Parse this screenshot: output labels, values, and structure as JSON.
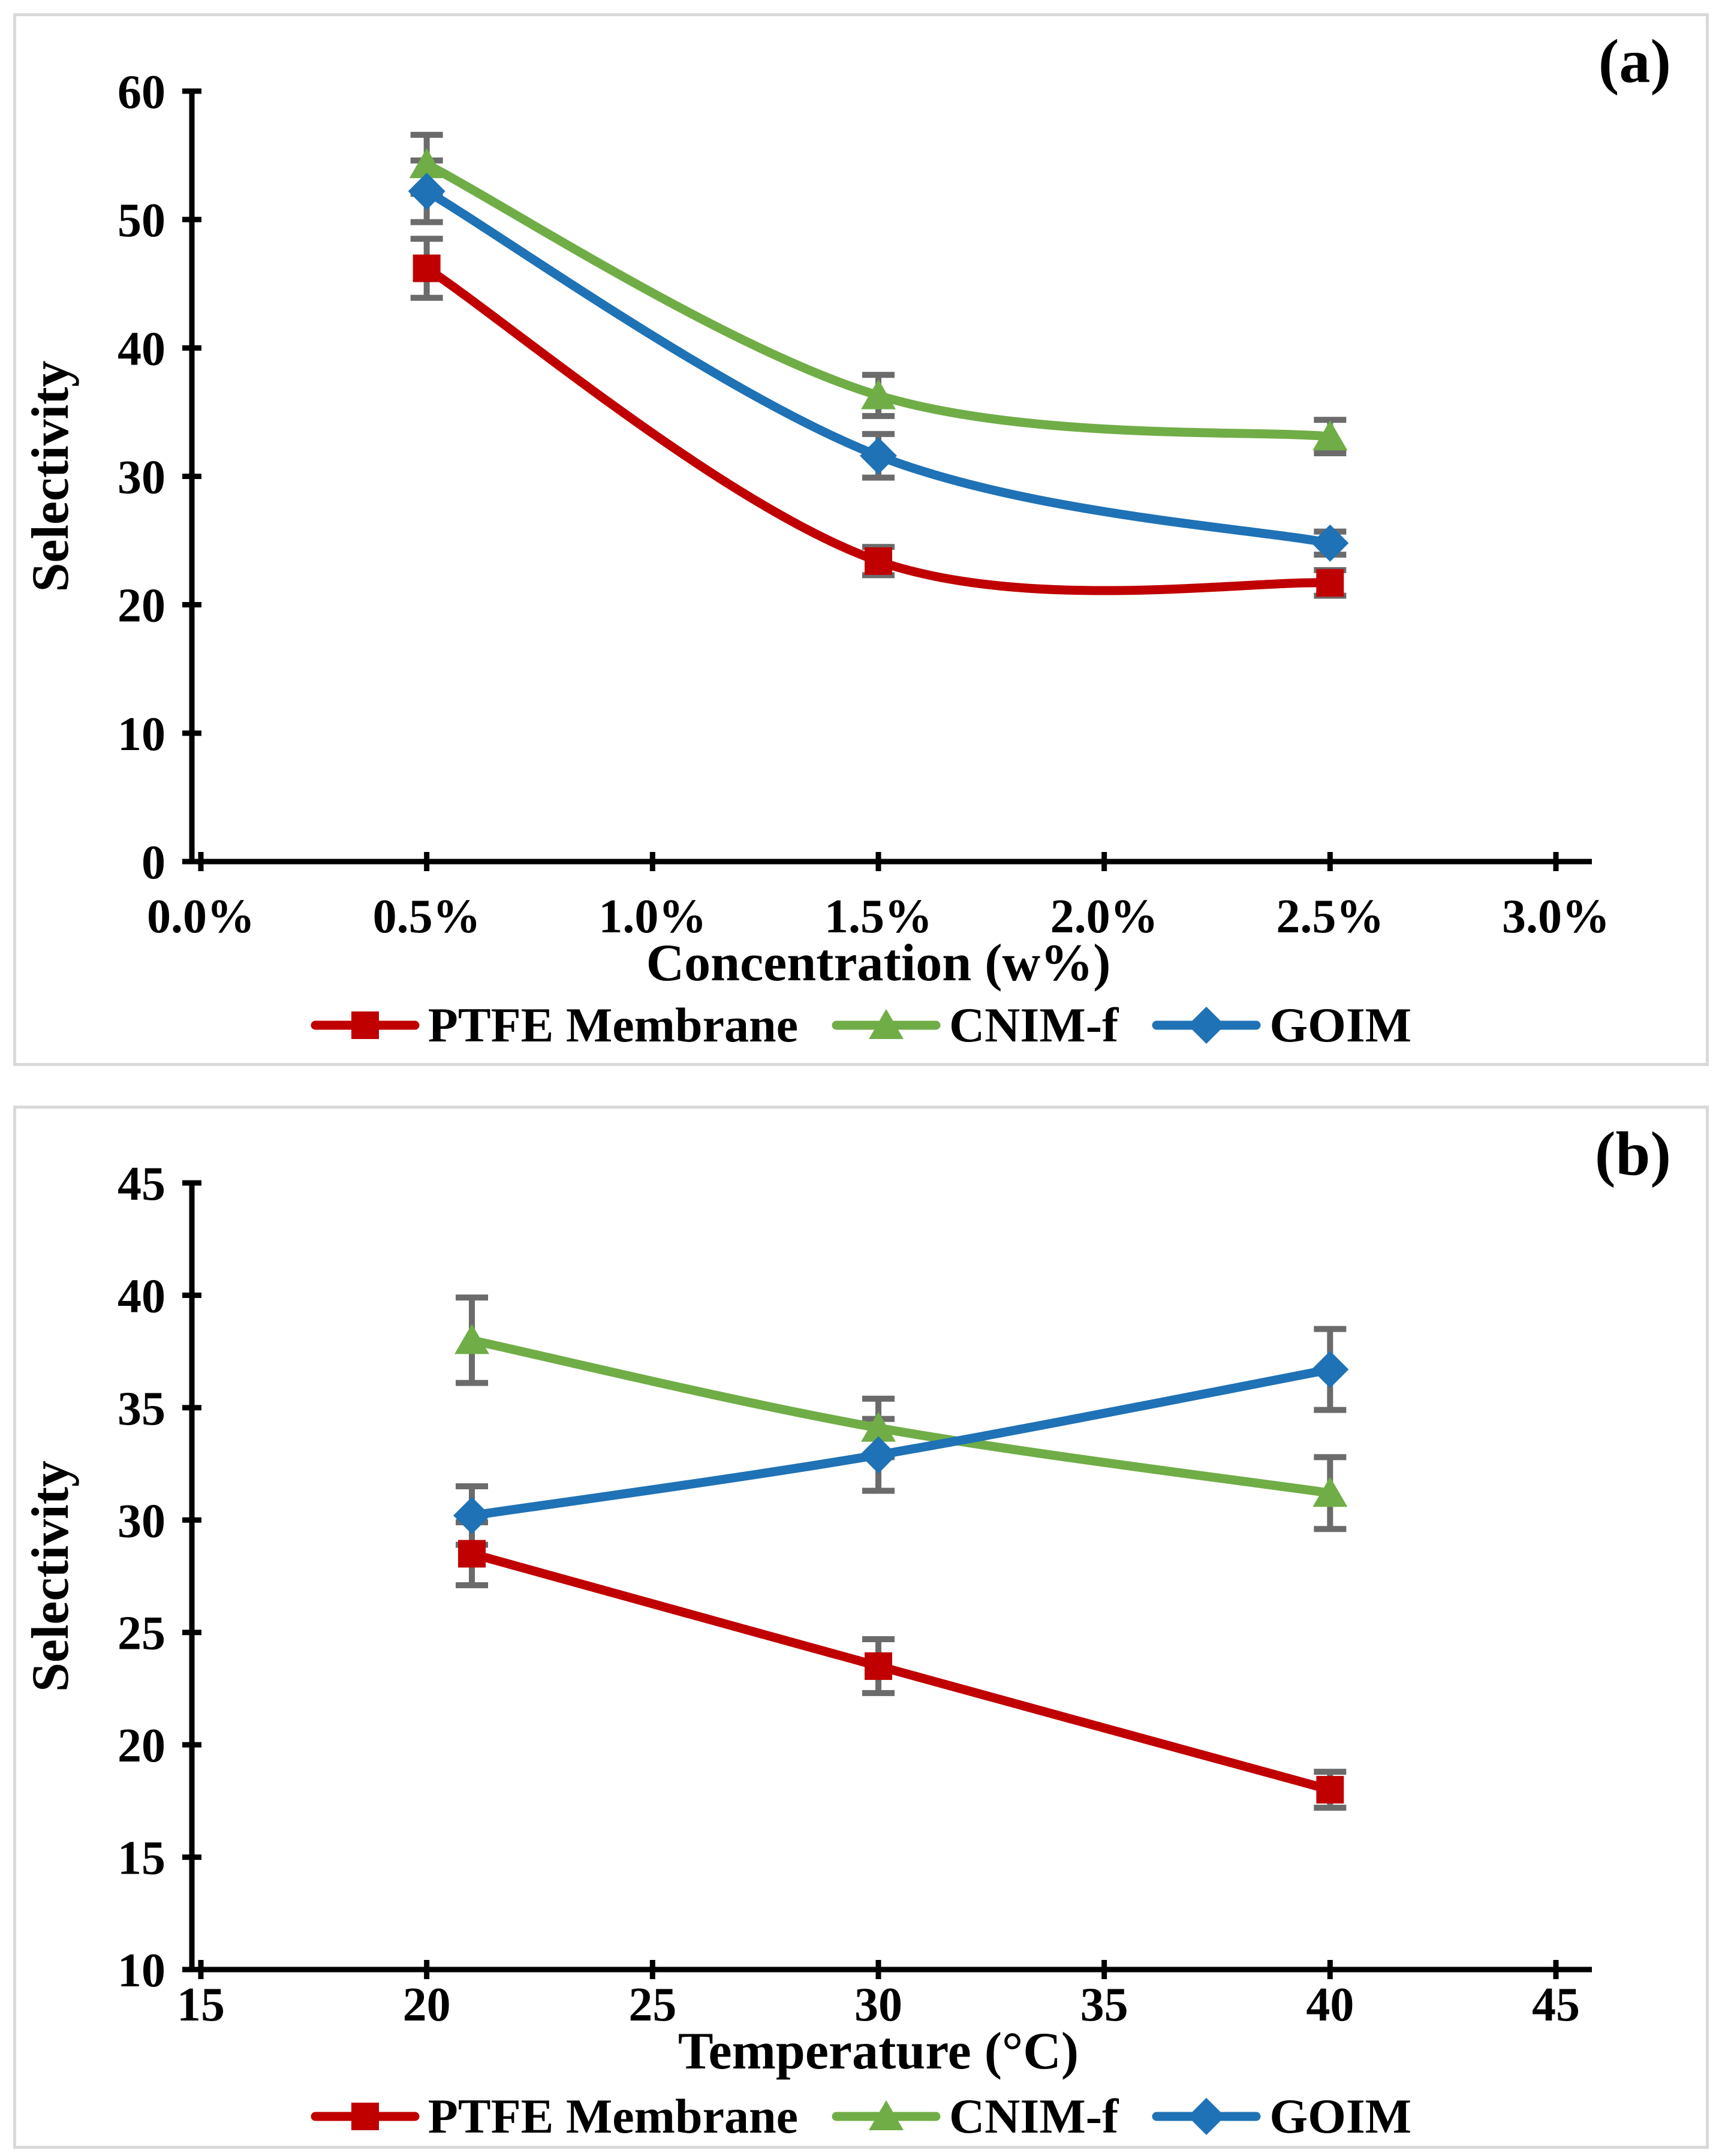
{
  "figure": {
    "background": "#FFFFFF",
    "panel_border_color": "#D9D9D9"
  },
  "colors": {
    "PTFE Membrane": "#C00000",
    "CNIM-f": "#70AD47",
    "GOIM": "#1F72B5",
    "error_bar": "#6B6B6B",
    "axis": "#000000",
    "text": "#000000"
  },
  "legend": {
    "items": [
      "PTFE Membrane",
      "CNIM-f",
      "GOIM"
    ]
  },
  "chart_data": [
    {
      "id": "a",
      "type": "line",
      "panel_label": "(a)",
      "grid": false,
      "legend_position": "bottom",
      "x_axis": {
        "label": "Concentration (w%)",
        "min": 0,
        "max": 3,
        "tick_values": [
          0,
          0.5,
          1,
          1.5,
          2,
          2.5,
          3
        ],
        "tick_labels": [
          "0.0%",
          "0.5%",
          "1.0%",
          "1.5%",
          "2.0%",
          "2.5%",
          "3.0%"
        ]
      },
      "y_axis": {
        "label": "Selectivity",
        "min": 0,
        "max": 60,
        "step": 10,
        "tick_labels": [
          "0",
          "10",
          "20",
          "30",
          "40",
          "50",
          "60"
        ]
      },
      "x": [
        0.5,
        1.5,
        2.5
      ],
      "series": [
        {
          "name": "PTFE Membrane",
          "marker": "square",
          "values": [
            46.2,
            23.4,
            21.7
          ],
          "errors": [
            2.3,
            1.1,
            1.0
          ]
        },
        {
          "name": "CNIM-f",
          "marker": "triangle",
          "values": [
            54.3,
            36.3,
            33.1
          ],
          "errors": [
            2.3,
            1.6,
            1.3
          ]
        },
        {
          "name": "GOIM",
          "marker": "diamond",
          "values": [
            52.2,
            31.6,
            24.8
          ],
          "errors": [
            2.4,
            1.7,
            0.9
          ]
        }
      ]
    },
    {
      "id": "b",
      "type": "line",
      "panel_label": "(b)",
      "grid": false,
      "legend_position": "bottom",
      "x_axis": {
        "label": "Temperature (°C)",
        "min": 15,
        "max": 45,
        "tick_values": [
          15,
          20,
          25,
          30,
          35,
          40,
          45
        ],
        "tick_labels": [
          "15",
          "20",
          "25",
          "30",
          "35",
          "40",
          "45"
        ]
      },
      "y_axis": {
        "label": "Selectivity",
        "min": 10,
        "max": 45,
        "step": 5,
        "tick_labels": [
          "10",
          "15",
          "20",
          "25",
          "30",
          "35",
          "40",
          "45"
        ]
      },
      "x": [
        21,
        30,
        40
      ],
      "series": [
        {
          "name": "PTFE Membrane",
          "marker": "square",
          "values": [
            28.5,
            23.5,
            18.0
          ],
          "errors": [
            1.4,
            1.2,
            0.8
          ]
        },
        {
          "name": "CNIM-f",
          "marker": "triangle",
          "values": [
            38.0,
            34.1,
            31.2
          ],
          "errors": [
            1.9,
            1.3,
            1.6
          ]
        },
        {
          "name": "GOIM",
          "marker": "diamond",
          "values": [
            30.2,
            32.9,
            36.7
          ],
          "errors": [
            1.3,
            1.6,
            1.8
          ]
        }
      ]
    }
  ]
}
